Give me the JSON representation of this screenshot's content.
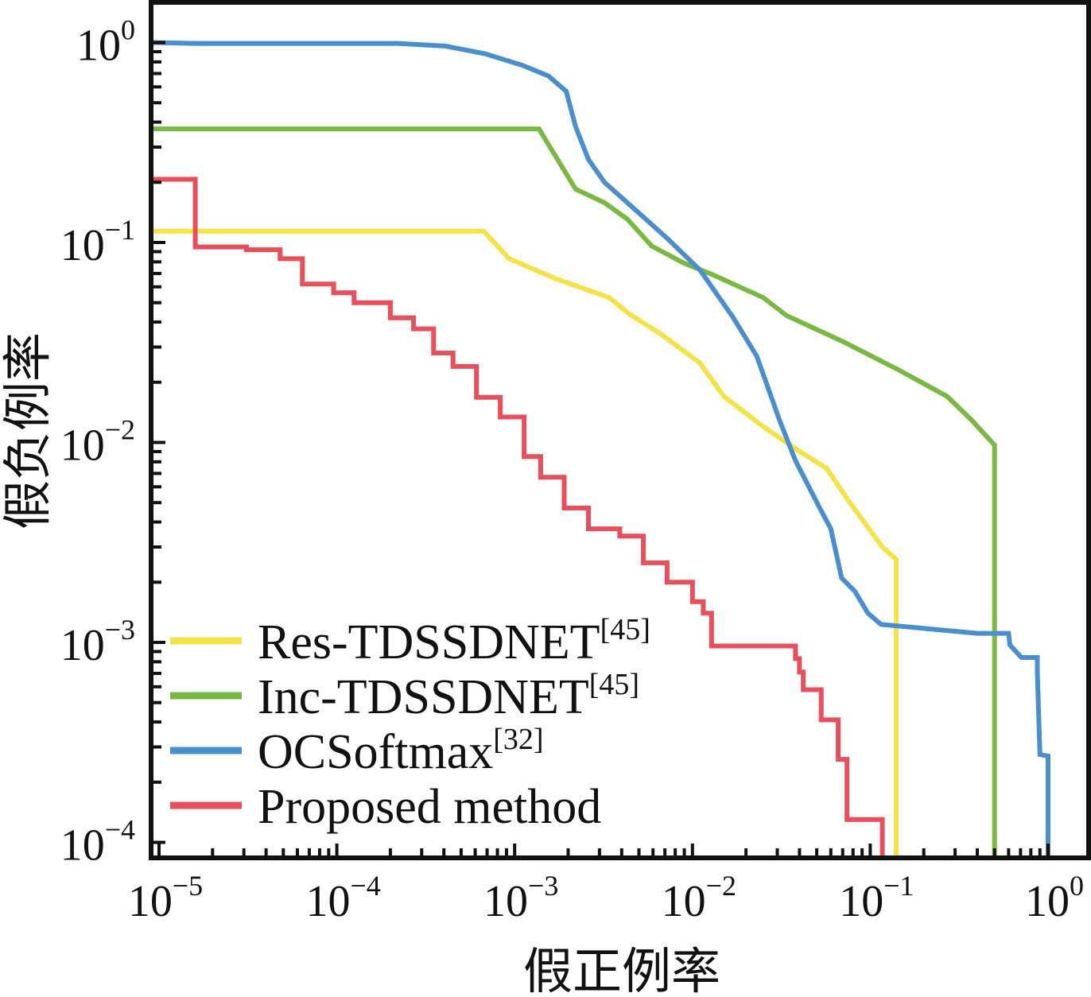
{
  "chart_data": {
    "type": "line",
    "title": "",
    "xlabel": "假正例率",
    "ylabel": "假负例率",
    "xscale": "log",
    "yscale": "log",
    "xlim": [
      8e-06,
      1.7
    ],
    "ylim": [
      8.3e-05,
      1.55
    ],
    "xticks": [
      {
        "value": 1e-05,
        "base": "10",
        "exp": "−5"
      },
      {
        "value": 0.0001,
        "base": "10",
        "exp": "−4"
      },
      {
        "value": 0.001,
        "base": "10",
        "exp": "−3"
      },
      {
        "value": 0.01,
        "base": "10",
        "exp": "−2"
      },
      {
        "value": 0.1,
        "base": "10",
        "exp": "−1"
      },
      {
        "value": 1,
        "base": "10",
        "exp": "0"
      }
    ],
    "yticks": [
      {
        "value": 1,
        "base": "10",
        "exp": "0"
      },
      {
        "value": 0.1,
        "base": "10",
        "exp": "−1"
      },
      {
        "value": 0.01,
        "base": "10",
        "exp": "−2"
      },
      {
        "value": 0.001,
        "base": "10",
        "exp": "−3"
      },
      {
        "value": 0.0001,
        "base": "10",
        "exp": "−4"
      }
    ],
    "grid": false,
    "legend_position": "bottom-left",
    "series": [
      {
        "name": "Res-TDSSDNET",
        "ref": "[45]",
        "color": "#f5e14a",
        "x": [
          8e-06,
          0.00067,
          0.00093,
          0.0017,
          0.0034,
          0.0044,
          0.0066,
          0.011,
          0.015,
          0.025,
          0.038,
          0.057,
          0.078,
          0.117,
          0.14,
          0.14
        ],
        "y": [
          0.114,
          0.114,
          0.083,
          0.066,
          0.053,
          0.044,
          0.035,
          0.025,
          0.017,
          0.012,
          0.0093,
          0.0074,
          0.0049,
          0.003,
          0.0026,
          8.3e-05
        ]
      },
      {
        "name": "Inc-TDSSDNET",
        "ref": "[45]",
        "color": "#78b843",
        "x": [
          8e-06,
          0.00137,
          0.0022,
          0.0032,
          0.0043,
          0.0059,
          0.0089,
          0.013,
          0.025,
          0.034,
          0.07,
          0.145,
          0.27,
          0.37,
          0.5,
          0.5
        ],
        "y": [
          0.37,
          0.37,
          0.185,
          0.158,
          0.131,
          0.096,
          0.079,
          0.069,
          0.053,
          0.043,
          0.032,
          0.023,
          0.017,
          0.013,
          0.0097,
          8.3e-05
        ]
      },
      {
        "name": "OCSoftmax",
        "ref": "[32]",
        "color": "#4a8fcc",
        "x": [
          8e-06,
          1.6e-05,
          0.00022,
          0.00041,
          0.00068,
          0.0011,
          0.00155,
          0.00195,
          0.0022,
          0.0026,
          0.0032,
          0.0048,
          0.0072,
          0.011,
          0.017,
          0.023,
          0.031,
          0.038,
          0.052,
          0.06,
          0.069,
          0.082,
          0.097,
          0.115,
          0.4,
          0.6,
          0.61,
          0.71,
          0.87,
          0.87,
          0.9,
          1.0,
          1.0
        ],
        "y": [
          1.0,
          0.99,
          0.99,
          0.96,
          0.88,
          0.77,
          0.68,
          0.57,
          0.38,
          0.26,
          0.2,
          0.145,
          0.105,
          0.073,
          0.042,
          0.027,
          0.0128,
          0.0081,
          0.0047,
          0.0037,
          0.0021,
          0.0018,
          0.0014,
          0.00123,
          0.00111,
          0.00111,
          0.00097,
          0.00084,
          0.00084,
          0.00071,
          0.000275,
          0.00027,
          8.3e-05
        ]
      },
      {
        "name": "Proposed method",
        "ref": "",
        "color": "#e5505a",
        "step": true,
        "x": [
          8e-06,
          1.6e-05,
          3.1e-05,
          4.8e-05,
          6.4e-05,
          9.6e-05,
          0.000125,
          0.0002,
          0.00027,
          0.00035,
          0.00045,
          0.00061,
          0.00083,
          0.00113,
          0.0014,
          0.0019,
          0.0026,
          0.0039,
          0.0053,
          0.0072,
          0.01,
          0.0115,
          0.0128,
          0.038,
          0.04,
          0.042,
          0.053,
          0.066,
          0.074,
          0.117
        ],
        "y": [
          0.207,
          0.095,
          0.092,
          0.083,
          0.062,
          0.056,
          0.05,
          0.042,
          0.037,
          0.028,
          0.024,
          0.0168,
          0.0134,
          0.0085,
          0.0067,
          0.0047,
          0.0037,
          0.0034,
          0.0025,
          0.002,
          0.0016,
          0.0014,
          0.00096,
          0.00083,
          0.00071,
          0.00058,
          0.00041,
          0.00026,
          0.00013,
          8.3e-05
        ]
      }
    ]
  }
}
